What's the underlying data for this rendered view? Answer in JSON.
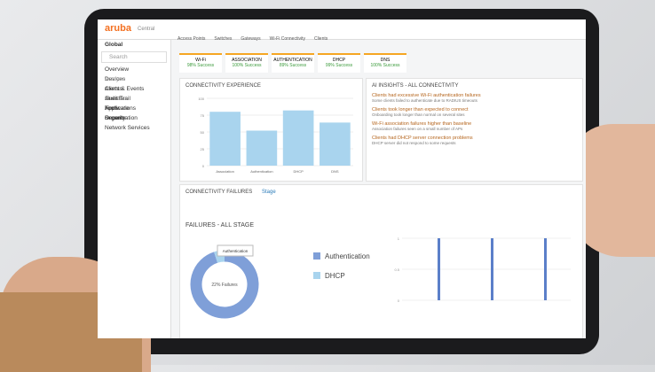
{
  "header": {
    "logo": "aruba",
    "product": "Central",
    "tabs": [
      "Access Points",
      "Switches",
      "Gateways",
      "Wi-Fi Connectivity",
      "Clients"
    ]
  },
  "sidebar": {
    "scope": "Global",
    "search": "Search",
    "items": [
      "Overview",
      "Devices",
      "Clients",
      "Guests",
      "Applications",
      "Security",
      "Network Services"
    ],
    "section": "Analyze",
    "items2": [
      "Alerts & Events",
      "Audit Trail",
      "Tools",
      "Reports"
    ],
    "section2": "Maintain",
    "items3": [
      "Firmware",
      "Organization"
    ]
  },
  "stages": [
    {
      "name": "Wi-Fi",
      "rate": "98% Success"
    },
    {
      "name": "ASSOCIATION",
      "rate": "100% Success"
    },
    {
      "name": "AUTHENTICATION",
      "rate": "89% Success"
    },
    {
      "name": "DHCP",
      "rate": "99% Success"
    },
    {
      "name": "DNS",
      "rate": "100% Success"
    }
  ],
  "connectivity": {
    "title": "CONNECTIVITY EXPERIENCE",
    "categories": [
      "Association",
      "Authentication",
      "DHCP",
      "DNS"
    ],
    "values": [
      80,
      52,
      82,
      64
    ],
    "yticks": [
      0,
      25,
      50,
      75,
      100
    ],
    "color": "#a9d4ee"
  },
  "insights": {
    "title": "AI INSIGHTS - ALL CONNECTIVITY",
    "items": [
      {
        "title": "Clients had excessive Wi-Fi authentication failures",
        "text": "Some clients failed to authenticate due to RADIUS timeouts"
      },
      {
        "title": "Clients took longer than expected to connect",
        "text": "Onboarding took longer than normal on several sites"
      },
      {
        "title": "Wi-Fi association failures higher than baseline",
        "text": "Association failures seen on a small number of APs"
      },
      {
        "title": "Clients had DHCP server connection problems",
        "text": "DHCP server did not respond to some requests"
      }
    ]
  },
  "failures": {
    "heading": "CONNECTIVITY FAILURES",
    "filter": "Stage",
    "title": "FAILURES - ALL STAGE",
    "center": "22% Failures",
    "tooltip": "Authentication",
    "segments": [
      {
        "name": "Authentication",
        "value": 95,
        "color": "#7f9fd8"
      },
      {
        "name": "DHCP",
        "value": 5,
        "color": "#a9d4ee"
      }
    ]
  },
  "trend": {
    "values": [
      1,
      1,
      1
    ],
    "yticks": [
      0,
      0.5,
      1
    ],
    "color": "#5b7fc9"
  }
}
